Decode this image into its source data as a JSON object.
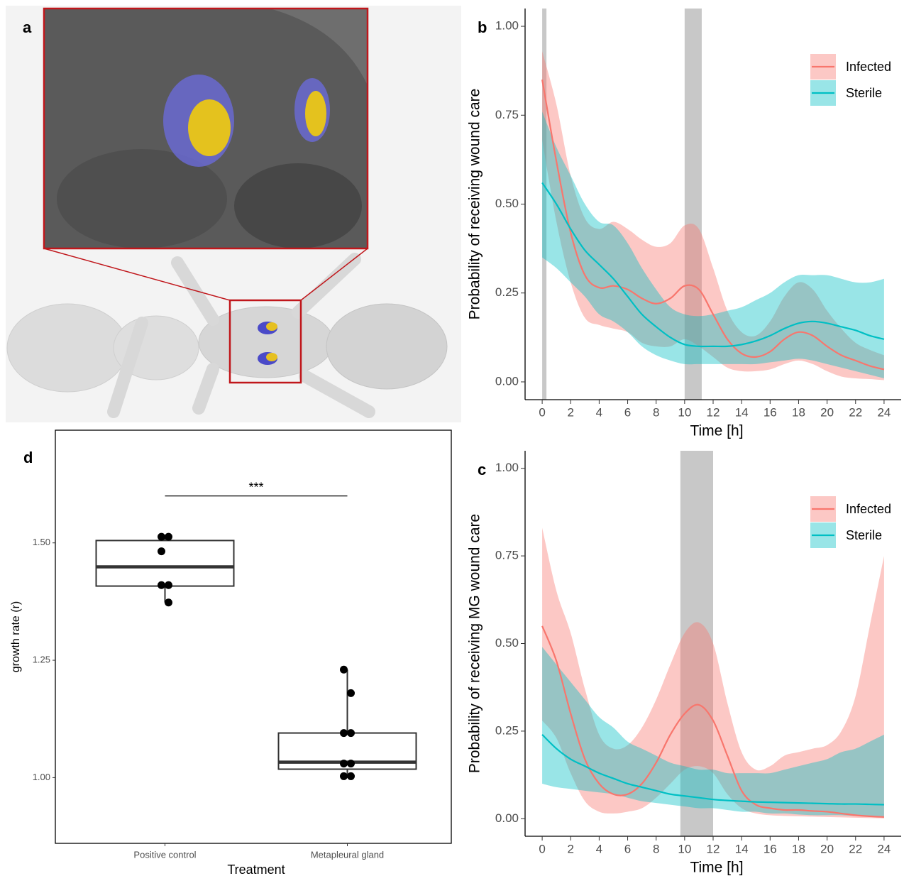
{
  "image_panel": {
    "label": "a"
  },
  "chart_data": [
    {
      "type": "line",
      "panel_label": "b",
      "x_label": "Time [h]",
      "y_label": "Probability of receiving wound care",
      "x": [
        0,
        1,
        2,
        3,
        4,
        5,
        6,
        7,
        8,
        9,
        10,
        11,
        12,
        13,
        14,
        15,
        16,
        17,
        18,
        19,
        20,
        21,
        22,
        23,
        24
      ],
      "series": [
        {
          "name": "Infected",
          "color": "#F8766D",
          "values": [
            0.85,
            0.62,
            0.42,
            0.3,
            0.265,
            0.27,
            0.26,
            0.235,
            0.22,
            0.235,
            0.27,
            0.26,
            0.19,
            0.12,
            0.08,
            0.07,
            0.085,
            0.12,
            0.14,
            0.13,
            0.1,
            0.075,
            0.06,
            0.045,
            0.035
          ],
          "upper": [
            0.93,
            0.78,
            0.58,
            0.46,
            0.43,
            0.45,
            0.43,
            0.4,
            0.38,
            0.39,
            0.44,
            0.43,
            0.32,
            0.2,
            0.14,
            0.13,
            0.17,
            0.24,
            0.28,
            0.26,
            0.2,
            0.15,
            0.11,
            0.09,
            0.075
          ],
          "lower": [
            0.68,
            0.45,
            0.28,
            0.18,
            0.16,
            0.15,
            0.14,
            0.11,
            0.1,
            0.1,
            0.12,
            0.1,
            0.07,
            0.04,
            0.03,
            0.03,
            0.035,
            0.05,
            0.06,
            0.05,
            0.03,
            0.015,
            0.01,
            0.008,
            0.005
          ]
        },
        {
          "name": "Sterile",
          "color": "#00BFC4",
          "values": [
            0.56,
            0.5,
            0.43,
            0.37,
            0.33,
            0.29,
            0.24,
            0.19,
            0.155,
            0.125,
            0.105,
            0.1,
            0.1,
            0.1,
            0.105,
            0.115,
            0.13,
            0.15,
            0.165,
            0.17,
            0.165,
            0.155,
            0.145,
            0.13,
            0.12
          ],
          "upper": [
            0.76,
            0.66,
            0.58,
            0.5,
            0.45,
            0.44,
            0.39,
            0.32,
            0.26,
            0.21,
            0.19,
            0.185,
            0.19,
            0.2,
            0.21,
            0.23,
            0.25,
            0.28,
            0.3,
            0.3,
            0.3,
            0.29,
            0.28,
            0.28,
            0.29
          ],
          "lower": [
            0.35,
            0.32,
            0.28,
            0.24,
            0.19,
            0.17,
            0.14,
            0.1,
            0.075,
            0.06,
            0.05,
            0.05,
            0.05,
            0.05,
            0.05,
            0.05,
            0.055,
            0.06,
            0.065,
            0.06,
            0.05,
            0.04,
            0.03,
            0.02,
            0.01
          ]
        }
      ],
      "shaded_ranges": [
        [
          0,
          0.3
        ],
        [
          10,
          11.2
        ]
      ],
      "xlim": [
        -1.2,
        25.2
      ],
      "xticks": [
        0,
        2,
        4,
        6,
        8,
        10,
        12,
        14,
        16,
        18,
        20,
        22,
        24
      ],
      "ylim": [
        -0.05,
        1.05
      ],
      "yticks": [
        {
          "value": 0,
          "label": "0.00"
        },
        0.25,
        {
          "value": 0.5,
          "label": "0.50"
        },
        0.75,
        {
          "value": 1,
          "label": "1.00"
        }
      ],
      "legend": "top-right"
    },
    {
      "type": "line",
      "panel_label": "c",
      "x_label": "Time [h]",
      "y_label": "Probability of receiving MG wound care",
      "x": [
        0,
        1,
        2,
        3,
        4,
        5,
        6,
        7,
        8,
        9,
        10,
        11,
        12,
        13,
        14,
        15,
        16,
        17,
        18,
        19,
        20,
        21,
        22,
        23,
        24
      ],
      "series": [
        {
          "name": "Infected",
          "color": "#F8766D",
          "values": [
            0.55,
            0.45,
            0.3,
            0.17,
            0.1,
            0.07,
            0.07,
            0.1,
            0.16,
            0.24,
            0.3,
            0.325,
            0.28,
            0.18,
            0.08,
            0.04,
            0.03,
            0.025,
            0.025,
            0.022,
            0.02,
            0.015,
            0.01,
            0.007,
            0.005
          ],
          "upper": [
            0.83,
            0.65,
            0.53,
            0.37,
            0.24,
            0.2,
            0.21,
            0.26,
            0.34,
            0.44,
            0.53,
            0.56,
            0.5,
            0.33,
            0.19,
            0.14,
            0.15,
            0.18,
            0.19,
            0.2,
            0.21,
            0.25,
            0.35,
            0.55,
            0.75
          ],
          "lower": [
            0.28,
            0.23,
            0.13,
            0.05,
            0.02,
            0.015,
            0.02,
            0.03,
            0.06,
            0.1,
            0.14,
            0.15,
            0.13,
            0.07,
            0.03,
            0.015,
            0.01,
            0.008,
            0.007,
            0.006,
            0.005,
            0.004,
            0.003,
            0.002,
            0.001
          ]
        },
        {
          "name": "Sterile",
          "color": "#00BFC4",
          "values": [
            0.24,
            0.2,
            0.17,
            0.15,
            0.13,
            0.115,
            0.1,
            0.09,
            0.08,
            0.07,
            0.065,
            0.06,
            0.055,
            0.052,
            0.05,
            0.048,
            0.047,
            0.046,
            0.045,
            0.044,
            0.043,
            0.042,
            0.042,
            0.041,
            0.04
          ],
          "upper": [
            0.49,
            0.44,
            0.39,
            0.34,
            0.29,
            0.26,
            0.22,
            0.2,
            0.18,
            0.16,
            0.15,
            0.14,
            0.14,
            0.13,
            0.13,
            0.13,
            0.13,
            0.14,
            0.15,
            0.16,
            0.17,
            0.19,
            0.2,
            0.22,
            0.24
          ],
          "lower": [
            0.1,
            0.09,
            0.085,
            0.08,
            0.075,
            0.07,
            0.06,
            0.05,
            0.045,
            0.04,
            0.035,
            0.03,
            0.03,
            0.025,
            0.02,
            0.02,
            0.015,
            0.015,
            0.012,
            0.01,
            0.01,
            0.01,
            0.008,
            0.008,
            0.007
          ]
        }
      ],
      "shaded_ranges": [
        [
          9.7,
          12
        ]
      ],
      "xlim": [
        -1.2,
        25.2
      ],
      "xticks": [
        0,
        2,
        4,
        6,
        8,
        10,
        12,
        14,
        16,
        18,
        20,
        22,
        24
      ],
      "ylim": [
        -0.05,
        1.05
      ],
      "yticks": [
        {
          "value": 0,
          "label": "0.00"
        },
        0.25,
        {
          "value": 0.5,
          "label": "0.50"
        },
        0.75,
        {
          "value": 1,
          "label": "1.00"
        }
      ],
      "legend": "top-right"
    },
    {
      "type": "box",
      "panel_label": "d",
      "x_label": "Treatment",
      "y_label": "growth rate (r)",
      "categories": [
        "Positive control",
        "Metapleural gland"
      ],
      "boxes": [
        {
          "q1": 1.408,
          "median": 1.449,
          "q3": 1.505,
          "whisker_low": 1.373,
          "whisker_high": 1.513
        },
        {
          "q1": 1.018,
          "median": 1.033,
          "q3": 1.095,
          "whisker_low": 1.003,
          "whisker_high": 1.23
        }
      ],
      "points": [
        [
          1.513,
          1.513,
          1.482,
          1.41,
          1.41,
          1.373
        ],
        [
          1.23,
          1.18,
          1.095,
          1.095,
          1.03,
          1.03,
          1.003,
          1.003
        ]
      ],
      "significance": {
        "label": "***",
        "y": 1.6
      },
      "ylim": [
        0.86,
        1.74
      ],
      "yticks": [
        {
          "value": 1,
          "label": "1.00"
        },
        1.25,
        {
          "value": 1.5,
          "label": "1.50"
        }
      ]
    }
  ]
}
